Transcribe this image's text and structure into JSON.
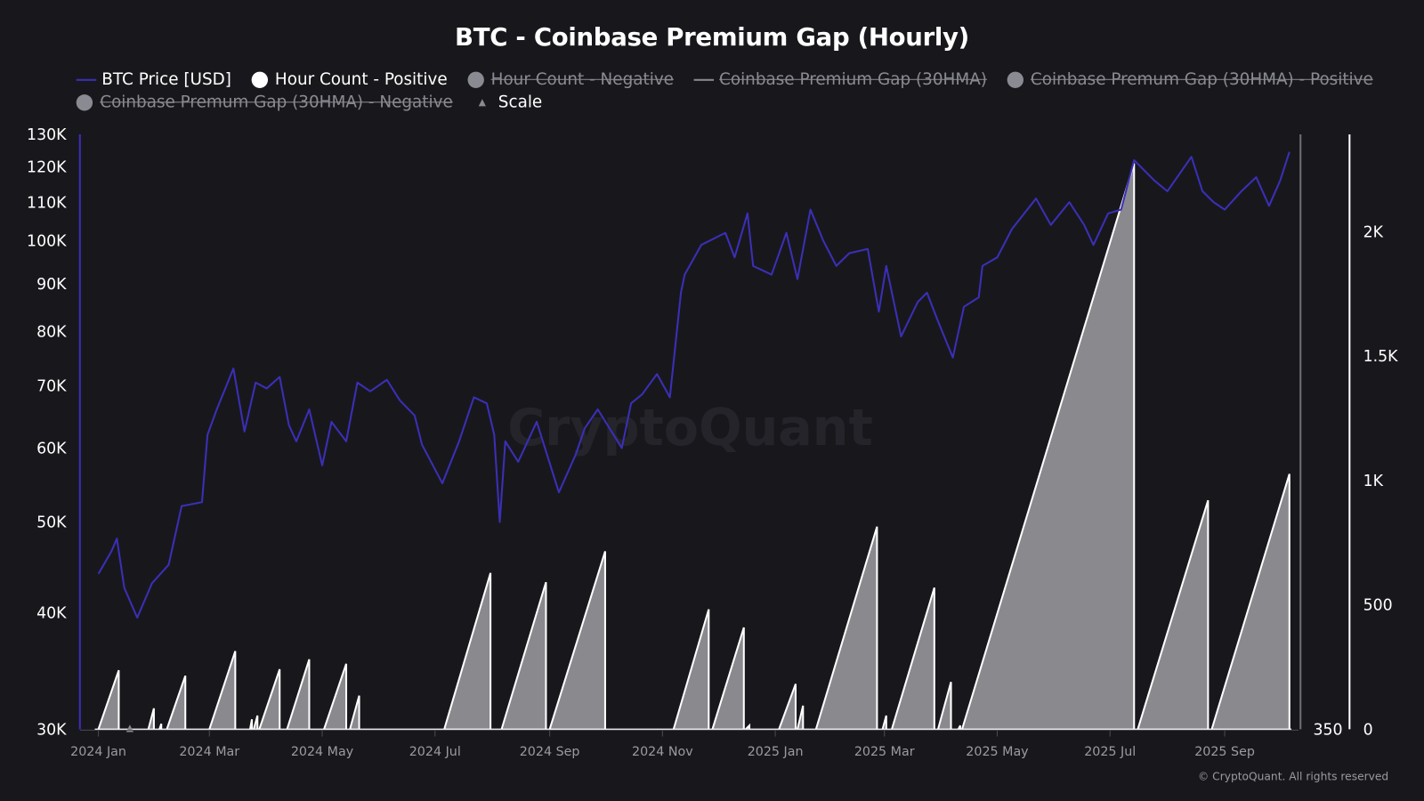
{
  "colors": {
    "background": "#18181c",
    "btc_price": "#3b2fb8",
    "hour_count_fill": "#8a898e",
    "hour_count_line": "#ffffff",
    "legend_off": "#8a8a92"
  },
  "watermark": "CryptoQuant",
  "copyright": "© CryptoQuant. All rights reserved",
  "chart_data": {
    "type": "line",
    "title": "BTC - Coinbase Premium Gap (Hourly)",
    "legend": [
      {
        "name": "BTC Price [USD]",
        "symbol": "line",
        "color": "#3b2fb8",
        "visible": true
      },
      {
        "name": "Hour Count - Positive",
        "symbol": "circle",
        "color": "#ffffff",
        "visible": true
      },
      {
        "name": "Hour Count - Negative",
        "symbol": "circle",
        "color": "#8a8a92",
        "visible": false
      },
      {
        "name": "Coinbase Premium Gap (30HMA)",
        "symbol": "line",
        "color": "#8a8a92",
        "visible": false
      },
      {
        "name": "Coinbase Premum Gap (30HMA) - Positive",
        "symbol": "circle",
        "color": "#8a8a92",
        "visible": false
      },
      {
        "name": "Coinbase Premum Gap (30HMA) - Negative",
        "symbol": "circle",
        "color": "#8a8a92",
        "visible": false
      },
      {
        "name": "Scale",
        "symbol": "triangle",
        "color": "#8a8a92",
        "visible": true
      }
    ],
    "legend_placement": "top",
    "grid": false,
    "x_axis": {
      "type": "date",
      "range": [
        "2023-12-22",
        "2025-10-11"
      ],
      "ticks": [
        [
          "2024-01-01",
          "2024 Jan"
        ],
        [
          "2024-03-01",
          "2024 Mar"
        ],
        [
          "2024-05-01",
          "2024 May"
        ],
        [
          "2024-07-01",
          "2024 Jul"
        ],
        [
          "2024-09-01",
          "2024 Sep"
        ],
        [
          "2024-11-01",
          "2024 Nov"
        ],
        [
          "2025-01-01",
          "2025 Jan"
        ],
        [
          "2025-03-01",
          "2025 Mar"
        ],
        [
          "2025-05-01",
          "2025 May"
        ],
        [
          "2025-07-01",
          "2025 Jul"
        ],
        [
          "2025-09-01",
          "2025 Sep"
        ]
      ]
    },
    "y_left": {
      "scale": "log",
      "range": [
        30000,
        130000
      ],
      "ticks": [
        [
          30000,
          "30K"
        ],
        [
          40000,
          "40K"
        ],
        [
          50000,
          "50K"
        ],
        [
          60000,
          "60K"
        ],
        [
          70000,
          "70K"
        ],
        [
          80000,
          "80K"
        ],
        [
          90000,
          "90K"
        ],
        [
          100000,
          "100K"
        ],
        [
          110000,
          "110K"
        ],
        [
          120000,
          "120K"
        ],
        [
          130000,
          "130K"
        ]
      ]
    },
    "y_right": {
      "scale": "linear",
      "range": [
        0,
        2400
      ],
      "ticks": [
        [
          0,
          "0"
        ],
        [
          500,
          "500"
        ],
        [
          1000,
          "1K"
        ],
        [
          1500,
          "1.5K"
        ],
        [
          2000,
          "2K"
        ]
      ]
    },
    "y_scale_axis": {
      "ticks": [
        [
          0,
          "350"
        ]
      ]
    },
    "btc_price": [
      [
        "2024-01-01",
        44000
      ],
      [
        "2024-01-08",
        46500
      ],
      [
        "2024-01-11",
        48000
      ],
      [
        "2024-01-15",
        42500
      ],
      [
        "2024-01-22",
        39500
      ],
      [
        "2024-01-30",
        43000
      ],
      [
        "2024-02-08",
        45000
      ],
      [
        "2024-02-15",
        52000
      ],
      [
        "2024-02-26",
        52500
      ],
      [
        "2024-02-29",
        62000
      ],
      [
        "2024-03-05",
        66000
      ],
      [
        "2024-03-14",
        73000
      ],
      [
        "2024-03-20",
        62500
      ],
      [
        "2024-03-26",
        70500
      ],
      [
        "2024-04-01",
        69500
      ],
      [
        "2024-04-08",
        71500
      ],
      [
        "2024-04-13",
        63500
      ],
      [
        "2024-04-17",
        61000
      ],
      [
        "2024-04-24",
        66000
      ],
      [
        "2024-05-01",
        57500
      ],
      [
        "2024-05-06",
        64000
      ],
      [
        "2024-05-14",
        61000
      ],
      [
        "2024-05-20",
        70500
      ],
      [
        "2024-05-27",
        69000
      ],
      [
        "2024-06-05",
        71000
      ],
      [
        "2024-06-12",
        67500
      ],
      [
        "2024-06-20",
        65000
      ],
      [
        "2024-06-24",
        60500
      ],
      [
        "2024-07-05",
        55000
      ],
      [
        "2024-07-14",
        61000
      ],
      [
        "2024-07-22",
        68000
      ],
      [
        "2024-07-29",
        67000
      ],
      [
        "2024-08-02",
        62000
      ],
      [
        "2024-08-05",
        50000
      ],
      [
        "2024-08-08",
        61000
      ],
      [
        "2024-08-15",
        58000
      ],
      [
        "2024-08-25",
        64000
      ],
      [
        "2024-09-06",
        53800
      ],
      [
        "2024-09-15",
        59000
      ],
      [
        "2024-09-20",
        63000
      ],
      [
        "2024-09-27",
        66000
      ],
      [
        "2024-10-10",
        60000
      ],
      [
        "2024-10-15",
        67000
      ],
      [
        "2024-10-21",
        68500
      ],
      [
        "2024-10-29",
        72000
      ],
      [
        "2024-11-05",
        68000
      ],
      [
        "2024-11-11",
        88000
      ],
      [
        "2024-11-13",
        92000
      ],
      [
        "2024-11-22",
        99000
      ],
      [
        "2024-12-05",
        102000
      ],
      [
        "2024-12-10",
        96000
      ],
      [
        "2024-12-17",
        107000
      ],
      [
        "2024-12-20",
        94000
      ],
      [
        "2024-12-30",
        92000
      ],
      [
        "2025-01-07",
        102000
      ],
      [
        "2025-01-13",
        91000
      ],
      [
        "2025-01-20",
        108000
      ],
      [
        "2025-01-27",
        100000
      ],
      [
        "2025-02-03",
        94000
      ],
      [
        "2025-02-10",
        97000
      ],
      [
        "2025-02-20",
        98000
      ],
      [
        "2025-02-26",
        84000
      ],
      [
        "2025-03-02",
        94000
      ],
      [
        "2025-03-10",
        79000
      ],
      [
        "2025-03-19",
        86000
      ],
      [
        "2025-03-24",
        88000
      ],
      [
        "2025-03-30",
        82000
      ],
      [
        "2025-04-07",
        75000
      ],
      [
        "2025-04-13",
        85000
      ],
      [
        "2025-04-21",
        87000
      ],
      [
        "2025-04-23",
        94000
      ],
      [
        "2025-05-01",
        96000
      ],
      [
        "2025-05-09",
        103000
      ],
      [
        "2025-05-22",
        111000
      ],
      [
        "2025-05-30",
        104000
      ],
      [
        "2025-06-09",
        110000
      ],
      [
        "2025-06-17",
        104000
      ],
      [
        "2025-06-22",
        99000
      ],
      [
        "2025-06-30",
        107000
      ],
      [
        "2025-07-07",
        108000
      ],
      [
        "2025-07-14",
        122000
      ],
      [
        "2025-07-25",
        116000
      ],
      [
        "2025-08-01",
        113000
      ],
      [
        "2025-08-14",
        123000
      ],
      [
        "2025-08-20",
        113000
      ],
      [
        "2025-08-26",
        110000
      ],
      [
        "2025-09-01",
        108000
      ],
      [
        "2025-09-10",
        113000
      ],
      [
        "2025-09-18",
        117000
      ],
      [
        "2025-09-25",
        109000
      ],
      [
        "2025-10-01",
        116000
      ],
      [
        "2025-10-06",
        124500
      ]
    ],
    "hour_count_positive": [
      [
        "2024-01-01",
        "2024-01-12",
        237
      ],
      [
        "2024-01-28",
        "2024-01-31",
        84
      ],
      [
        "2024-02-03",
        "2024-02-04",
        22
      ],
      [
        "2024-02-07",
        "2024-02-17",
        215
      ],
      [
        "2024-03-01",
        "2024-03-15",
        314
      ],
      [
        "2024-03-23",
        "2024-03-24",
        40
      ],
      [
        "2024-03-25",
        "2024-03-27",
        55
      ],
      [
        "2024-03-28",
        "2024-04-08",
        241
      ],
      [
        "2024-04-12",
        "2024-04-24",
        281
      ],
      [
        "2024-05-02",
        "2024-05-14",
        263
      ],
      [
        "2024-05-16",
        "2024-05-21",
        135
      ],
      [
        "2024-07-06",
        "2024-07-31",
        628
      ],
      [
        "2024-08-06",
        "2024-08-30",
        591
      ],
      [
        "2024-09-01",
        "2024-10-01",
        715
      ],
      [
        "2024-11-07",
        "2024-11-26",
        482
      ],
      [
        "2024-11-28",
        "2024-12-15",
        409
      ],
      [
        "2024-12-16",
        "2024-12-18",
        15
      ],
      [
        "2025-01-03",
        "2025-01-12",
        182
      ],
      [
        "2025-01-13",
        "2025-01-16",
        95
      ],
      [
        "2025-01-23",
        "2025-02-25",
        814
      ],
      [
        "2025-02-28",
        "2025-03-02",
        55
      ],
      [
        "2025-03-05",
        "2025-03-28",
        569
      ],
      [
        "2025-03-30",
        "2025-04-06",
        190
      ],
      [
        "2025-04-10",
        "2025-04-11",
        15
      ],
      [
        "2025-04-12",
        "2025-07-14",
        2274
      ],
      [
        "2025-07-16",
        "2025-08-23",
        920
      ],
      [
        "2025-08-25",
        "2025-10-06",
        1026
      ]
    ],
    "scale_marker_date": "2024-01-18"
  }
}
